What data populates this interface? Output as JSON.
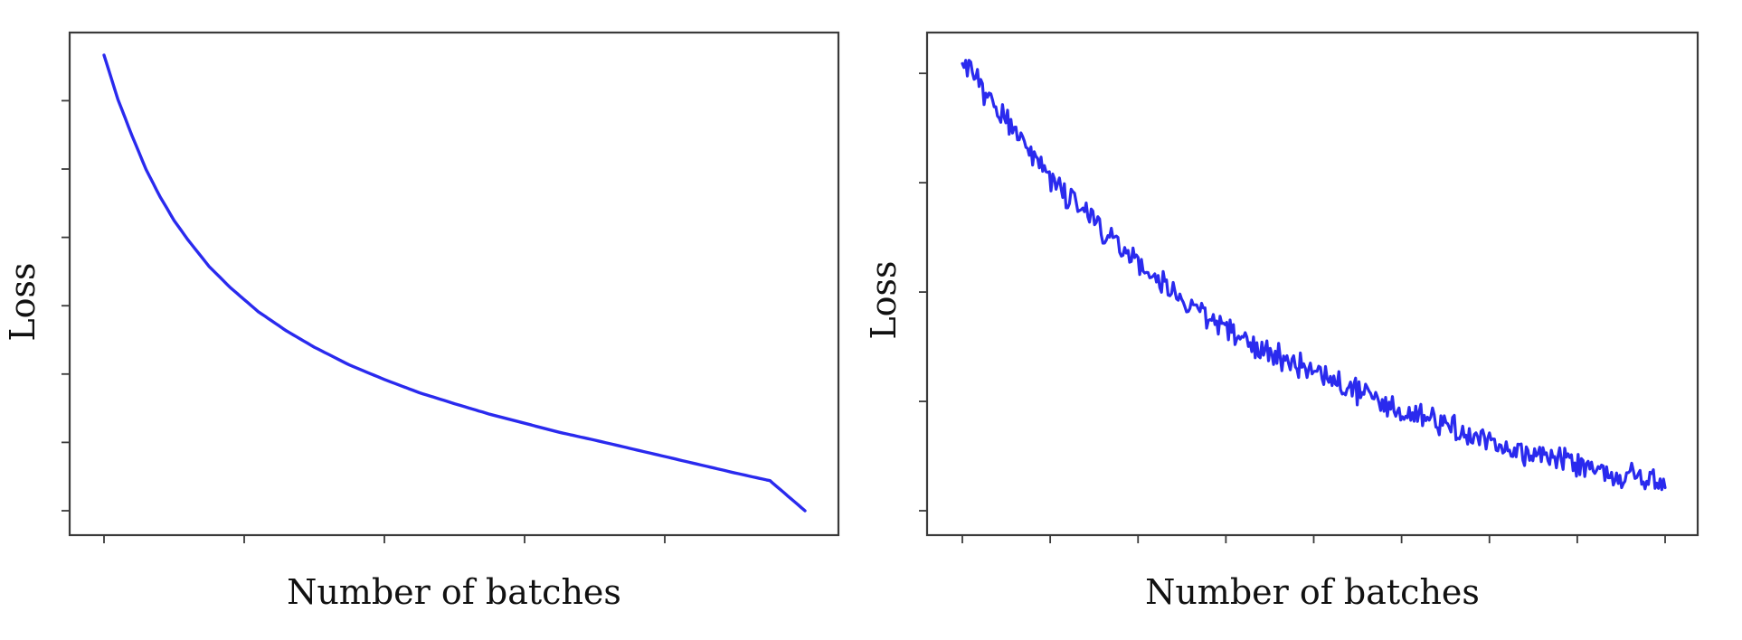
{
  "chart_data": [
    {
      "type": "line",
      "title": "",
      "xlabel": "Number of batches",
      "ylabel": "Loss",
      "xlim": [
        0,
        1
      ],
      "ylim": [
        0,
        1
      ],
      "x_ticks": [
        0,
        0.2,
        0.4,
        0.6,
        0.8
      ],
      "y_ticks": [
        0.0,
        0.15,
        0.3,
        0.45,
        0.6,
        0.75,
        0.9
      ],
      "grid": false,
      "legend": "none",
      "line_color": "#2a2aee",
      "noise": 0,
      "series": [
        {
          "x": [
            0,
            0.02,
            0.04,
            0.06,
            0.08,
            0.1,
            0.12,
            0.15,
            0.18,
            0.22,
            0.26,
            0.3,
            0.35,
            0.4,
            0.45,
            0.5,
            0.55,
            0.6,
            0.65,
            0.7,
            0.75,
            0.8,
            0.85,
            0.9,
            0.95,
            1.0
          ],
          "y": [
            1.0,
            0.902,
            0.823,
            0.749,
            0.689,
            0.637,
            0.594,
            0.536,
            0.49,
            0.437,
            0.395,
            0.359,
            0.32,
            0.288,
            0.259,
            0.235,
            0.212,
            0.192,
            0.172,
            0.155,
            0.137,
            0.119,
            0.101,
            0.083,
            0.066,
            0.0
          ]
        }
      ]
    },
    {
      "type": "line",
      "title": "",
      "xlabel": "Number of batches",
      "ylabel": "Loss",
      "xlim": [
        0,
        1
      ],
      "ylim": [
        0,
        1
      ],
      "x_ticks": [
        0,
        0.125,
        0.25,
        0.375,
        0.5,
        0.625,
        0.75,
        0.875,
        1.0
      ],
      "y_ticks": [
        0.0,
        0.24,
        0.48,
        0.72,
        0.96
      ],
      "grid": false,
      "legend": "none",
      "line_color": "#2a2aee",
      "noise": 0.022,
      "series": [
        {
          "x": [
            0,
            0.05,
            0.1,
            0.15,
            0.2,
            0.25,
            0.3,
            0.35,
            0.4,
            0.45,
            0.5,
            0.55,
            0.6,
            0.65,
            0.7,
            0.75,
            0.8,
            0.85,
            0.9,
            0.95,
            1.0
          ],
          "y": [
            0.99,
            0.88,
            0.78,
            0.69,
            0.615,
            0.545,
            0.48,
            0.425,
            0.38,
            0.34,
            0.3,
            0.27,
            0.235,
            0.205,
            0.18,
            0.155,
            0.13,
            0.11,
            0.095,
            0.075,
            0.055
          ]
        }
      ]
    }
  ]
}
